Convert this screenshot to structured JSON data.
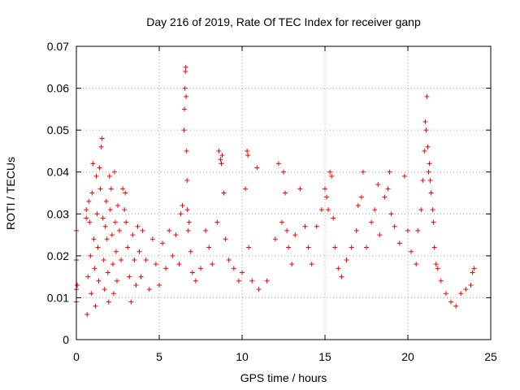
{
  "chart_data": {
    "type": "scatter",
    "title": "Day 216 of 2019, Rate Of TEC Index for receiver ganp",
    "xlabel": "GPS time / hours",
    "ylabel": "ROTI / TECUs",
    "xlim": [
      0,
      25
    ],
    "ylim": [
      0,
      0.07
    ],
    "x_ticks": [
      0,
      5,
      10,
      15,
      20,
      25
    ],
    "x_tick_labels": [
      "0",
      "5",
      "10",
      "15",
      "20",
      "25"
    ],
    "y_ticks": [
      0,
      0.01,
      0.02,
      0.03,
      0.04,
      0.05,
      0.06,
      0.07
    ],
    "y_tick_labels": [
      "0",
      "0.01",
      "0.02",
      "0.03",
      "0.04",
      "0.05",
      "0.06",
      "0.07"
    ],
    "grid": true,
    "marker": "+",
    "series": [
      {
        "name": "ROTI",
        "color": "#ff0000",
        "points": [
          [
            0.0,
            0.026
          ],
          [
            0.0,
            0.019
          ],
          [
            0.0,
            0.012
          ],
          [
            0.0,
            0.009
          ],
          [
            0.05,
            0.013
          ],
          [
            0.6,
            0.031
          ],
          [
            0.6,
            0.029
          ],
          [
            0.65,
            0.006
          ],
          [
            0.7,
            0.015
          ],
          [
            0.75,
            0.033
          ],
          [
            0.8,
            0.028
          ],
          [
            0.85,
            0.02
          ],
          [
            0.9,
            0.011
          ],
          [
            0.95,
            0.035
          ],
          [
            1.0,
            0.042
          ],
          [
            1.05,
            0.024
          ],
          [
            1.1,
            0.017
          ],
          [
            1.15,
            0.008
          ],
          [
            1.2,
            0.039
          ],
          [
            1.25,
            0.03
          ],
          [
            1.3,
            0.022
          ],
          [
            1.35,
            0.014
          ],
          [
            1.4,
            0.041
          ],
          [
            1.45,
            0.036
          ],
          [
            1.5,
            0.046
          ],
          [
            1.55,
            0.048
          ],
          [
            1.6,
            0.029
          ],
          [
            1.65,
            0.019
          ],
          [
            1.7,
            0.012
          ],
          [
            1.75,
            0.027
          ],
          [
            1.8,
            0.033
          ],
          [
            1.85,
            0.024
          ],
          [
            1.9,
            0.016
          ],
          [
            1.95,
            0.009
          ],
          [
            2.0,
            0.039
          ],
          [
            2.05,
            0.031
          ],
          [
            2.1,
            0.036
          ],
          [
            2.15,
            0.025
          ],
          [
            2.2,
            0.018
          ],
          [
            2.25,
            0.011
          ],
          [
            2.3,
            0.04
          ],
          [
            2.35,
            0.028
          ],
          [
            2.4,
            0.021
          ],
          [
            2.45,
            0.014
          ],
          [
            2.5,
            0.032
          ],
          [
            2.6,
            0.026
          ],
          [
            2.7,
            0.019
          ],
          [
            2.8,
            0.036
          ],
          [
            2.9,
            0.031
          ],
          [
            2.95,
            0.035
          ],
          [
            3.0,
            0.028
          ],
          [
            3.1,
            0.022
          ],
          [
            3.2,
            0.015
          ],
          [
            3.3,
            0.009
          ],
          [
            3.4,
            0.025
          ],
          [
            3.5,
            0.019
          ],
          [
            3.6,
            0.013
          ],
          [
            3.7,
            0.027
          ],
          [
            3.8,
            0.021
          ],
          [
            3.9,
            0.015
          ],
          [
            4.0,
            0.026
          ],
          [
            4.2,
            0.019
          ],
          [
            4.4,
            0.012
          ],
          [
            4.6,
            0.024
          ],
          [
            4.8,
            0.018
          ],
          [
            5.0,
            0.013
          ],
          [
            5.2,
            0.023
          ],
          [
            5.4,
            0.017
          ],
          [
            5.6,
            0.026
          ],
          [
            5.8,
            0.02
          ],
          [
            6.0,
            0.025
          ],
          [
            6.2,
            0.018
          ],
          [
            6.3,
            0.03
          ],
          [
            6.4,
            0.032
          ],
          [
            6.5,
            0.05
          ],
          [
            6.52,
            0.055
          ],
          [
            6.55,
            0.06
          ],
          [
            6.58,
            0.064
          ],
          [
            6.6,
            0.065
          ],
          [
            6.62,
            0.058
          ],
          [
            6.65,
            0.045
          ],
          [
            6.68,
            0.038
          ],
          [
            6.7,
            0.031
          ],
          [
            6.75,
            0.026
          ],
          [
            6.8,
            0.028
          ],
          [
            6.9,
            0.021
          ],
          [
            7.0,
            0.016
          ],
          [
            7.2,
            0.014
          ],
          [
            7.5,
            0.017
          ],
          [
            7.8,
            0.026
          ],
          [
            8.0,
            0.022
          ],
          [
            8.2,
            0.018
          ],
          [
            8.5,
            0.028
          ],
          [
            8.6,
            0.045
          ],
          [
            8.7,
            0.043
          ],
          [
            8.75,
            0.042
          ],
          [
            8.8,
            0.044
          ],
          [
            8.9,
            0.035
          ],
          [
            9.0,
            0.024
          ],
          [
            9.2,
            0.019
          ],
          [
            9.5,
            0.017
          ],
          [
            9.8,
            0.014
          ],
          [
            10.0,
            0.016
          ],
          [
            10.2,
            0.036
          ],
          [
            10.3,
            0.045
          ],
          [
            10.35,
            0.044
          ],
          [
            10.4,
            0.022
          ],
          [
            10.6,
            0.014
          ],
          [
            10.9,
            0.041
          ],
          [
            11.0,
            0.012
          ],
          [
            11.5,
            0.014
          ],
          [
            12.0,
            0.024
          ],
          [
            12.2,
            0.042
          ],
          [
            12.4,
            0.028
          ],
          [
            12.5,
            0.04
          ],
          [
            12.6,
            0.035
          ],
          [
            12.7,
            0.026
          ],
          [
            12.8,
            0.022
          ],
          [
            13.0,
            0.018
          ],
          [
            13.2,
            0.025
          ],
          [
            13.5,
            0.036
          ],
          [
            13.8,
            0.027
          ],
          [
            14.0,
            0.022
          ],
          [
            14.2,
            0.018
          ],
          [
            14.5,
            0.027
          ],
          [
            14.8,
            0.031
          ],
          [
            15.0,
            0.036
          ],
          [
            15.1,
            0.034
          ],
          [
            15.2,
            0.031
          ],
          [
            15.3,
            0.04
          ],
          [
            15.4,
            0.039
          ],
          [
            15.5,
            0.029
          ],
          [
            15.6,
            0.022
          ],
          [
            15.8,
            0.017
          ],
          [
            16.0,
            0.015
          ],
          [
            16.3,
            0.019
          ],
          [
            16.6,
            0.022
          ],
          [
            16.9,
            0.026
          ],
          [
            17.0,
            0.032
          ],
          [
            17.2,
            0.034
          ],
          [
            17.3,
            0.04
          ],
          [
            17.5,
            0.022
          ],
          [
            17.8,
            0.028
          ],
          [
            18.0,
            0.031
          ],
          [
            18.2,
            0.037
          ],
          [
            18.3,
            0.025
          ],
          [
            18.6,
            0.034
          ],
          [
            18.8,
            0.036
          ],
          [
            18.9,
            0.04
          ],
          [
            19.0,
            0.03
          ],
          [
            19.2,
            0.027
          ],
          [
            19.5,
            0.023
          ],
          [
            19.8,
            0.039
          ],
          [
            20.0,
            0.026
          ],
          [
            20.2,
            0.021
          ],
          [
            20.5,
            0.018
          ],
          [
            20.6,
            0.026
          ],
          [
            20.8,
            0.031
          ],
          [
            20.9,
            0.038
          ],
          [
            21.0,
            0.045
          ],
          [
            21.05,
            0.052
          ],
          [
            21.1,
            0.05
          ],
          [
            21.15,
            0.058
          ],
          [
            21.2,
            0.046
          ],
          [
            21.25,
            0.04
          ],
          [
            21.3,
            0.042
          ],
          [
            21.35,
            0.038
          ],
          [
            21.4,
            0.035
          ],
          [
            21.5,
            0.031
          ],
          [
            21.55,
            0.028
          ],
          [
            21.6,
            0.022
          ],
          [
            21.7,
            0.018
          ],
          [
            21.8,
            0.017
          ],
          [
            22.0,
            0.014
          ],
          [
            22.3,
            0.011
          ],
          [
            22.6,
            0.009
          ],
          [
            22.9,
            0.008
          ],
          [
            23.2,
            0.011
          ],
          [
            23.5,
            0.012
          ],
          [
            23.8,
            0.013
          ],
          [
            23.9,
            0.016
          ],
          [
            24.0,
            0.017
          ]
        ]
      }
    ]
  }
}
